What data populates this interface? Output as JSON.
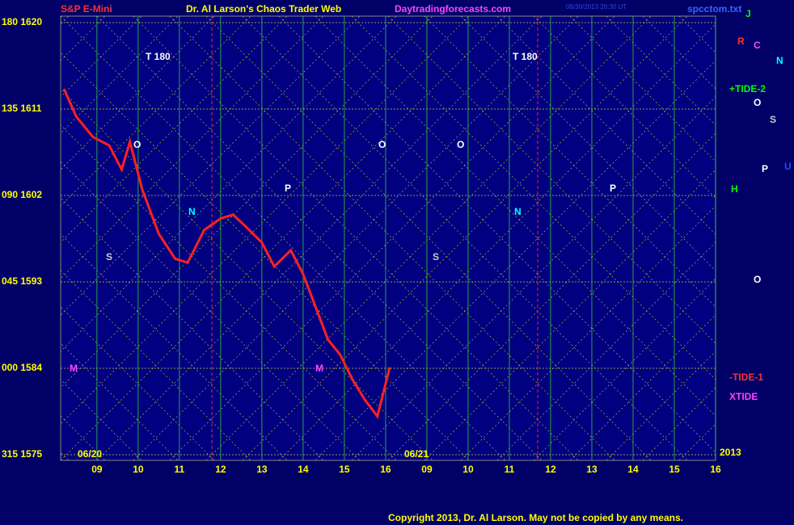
{
  "chart_data": {
    "type": "line",
    "title": "Dr. Al Larson's Chaos Trader Web",
    "instrument": "S&P E-Mini",
    "website": "Daytradingforecasts.com",
    "file": "spcctom.txt",
    "timestamp": "06/30/2013 20:30 UT",
    "copyright": "Copyright 2013, Dr. Al Larson. May not be copied by any means.",
    "x": [
      8.2,
      8.5,
      8.9,
      9.3,
      9.6,
      9.8,
      10.1,
      10.5,
      10.9,
      11.2,
      11.6,
      12.0,
      12.3,
      12.6,
      13.0,
      13.3,
      13.7,
      14.0,
      14.3,
      14.6,
      14.9,
      15.2,
      15.5,
      15.8,
      16.1
    ],
    "values": [
      1613.1,
      1610.2,
      1608.1,
      1607.2,
      1604.7,
      1607.6,
      1602.6,
      1598,
      1595.4,
      1595,
      1598.4,
      1599.6,
      1600,
      1598.8,
      1597.1,
      1594.6,
      1596.3,
      1593.8,
      1590.4,
      1587,
      1585.4,
      1582.8,
      1580.7,
      1579,
      1584.1
    ],
    "color": "#ff2020",
    "xlim": [
      8.12,
      24.0
    ],
    "xticks": [
      {
        "value": 9,
        "label": "09"
      },
      10,
      11,
      12,
      13,
      14,
      15,
      16,
      {
        "value": 17,
        "label": "09"
      },
      {
        "value": 18,
        "label": "10"
      },
      {
        "value": 19,
        "label": "11"
      },
      {
        "value": 20,
        "label": "12"
      },
      {
        "value": 21,
        "label": "13"
      },
      {
        "value": 22,
        "label": "14"
      },
      {
        "value": 23,
        "label": "15"
      },
      {
        "value": 24,
        "label": "16"
      }
    ],
    "ylim": [
      1575,
      1620
    ],
    "yticks": [
      {
        "value": 1575,
        "label": "315 1575"
      },
      {
        "value": 1584,
        "label": "000 1584"
      },
      {
        "value": 1593,
        "label": "045 1593"
      },
      {
        "value": 1602,
        "label": "090 1602"
      },
      {
        "value": 1611,
        "label": "135 1611"
      },
      {
        "value": 1620,
        "label": "180 1620"
      }
    ],
    "grid": true,
    "annotations": [
      "06/20",
      "06/21",
      "2013",
      "+TIDE-2",
      "-TIDE-1",
      "XTIDE",
      "T   180",
      "T   180",
      "R",
      "C",
      "N",
      "J",
      "H",
      "O",
      "S",
      "P",
      "U",
      "M",
      "M",
      "N",
      "N",
      "P",
      "P",
      "S",
      "S",
      "O",
      "O",
      "O",
      "O"
    ]
  }
}
